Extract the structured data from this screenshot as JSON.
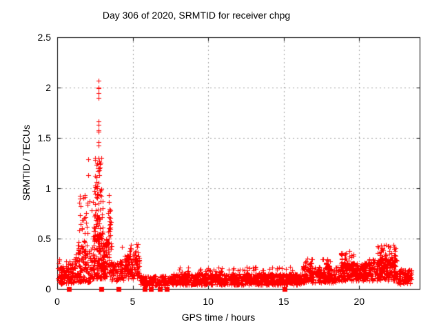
{
  "chart_data": {
    "type": "scatter",
    "title": "Day 306 of 2020, SRMTID for receiver chpg",
    "xlabel": "GPS time / hours",
    "ylabel": "SRMTID / TECUs",
    "xlim": [
      0,
      24
    ],
    "ylim": [
      0,
      2.5
    ],
    "xticks": [
      "0",
      "5",
      "10",
      "15",
      "20"
    ],
    "yticks": [
      "0",
      "0.5",
      "1",
      "1.5",
      "2",
      "2.5"
    ],
    "grid": {
      "shown": true,
      "style": "dotted",
      "color": "#9c9c9c"
    },
    "legend_position": "none",
    "frame_color": "#000000",
    "marker_color": "#ff0000",
    "peak": {
      "x": 2.73,
      "y": 2.07
    },
    "series": [
      {
        "name": "srmtid-plus-markers",
        "marker": "plus",
        "color": "#ff0000",
        "outlier_points": [
          [
            2.73,
            2.07
          ],
          [
            2.72,
            2.0
          ],
          [
            2.745,
            1.995
          ],
          [
            2.76,
            1.99
          ],
          [
            2.73,
            1.945
          ],
          [
            2.735,
            1.9
          ],
          [
            2.72,
            1.665
          ],
          [
            2.735,
            1.63
          ],
          [
            2.745,
            1.575
          ],
          [
            2.755,
            1.565
          ],
          [
            2.73,
            1.46
          ],
          [
            2.74,
            1.425
          ],
          [
            2.76,
            1.3
          ],
          [
            2.79,
            1.27
          ],
          [
            2.81,
            1.24
          ],
          [
            2.77,
            1.2
          ],
          [
            2.7,
            1.17
          ],
          [
            2.05,
            1.285
          ],
          [
            2.06,
            1.13
          ],
          [
            2.58,
            1.06
          ],
          [
            2.5,
            1.03
          ],
          [
            2.64,
            1.0
          ],
          [
            2.46,
            0.97
          ],
          [
            1.52,
            0.9
          ],
          [
            1.56,
            0.82
          ],
          [
            1.49,
            0.73
          ],
          [
            2.35,
            0.86
          ],
          [
            2.3,
            0.78
          ],
          [
            3.42,
            0.93
          ],
          [
            3.43,
            0.86
          ],
          [
            3.45,
            0.795
          ],
          [
            3.44,
            0.71
          ],
          [
            3.46,
            0.635
          ],
          [
            3.47,
            0.575
          ],
          [
            3.41,
            0.52
          ],
          [
            4.31,
            0.42
          ],
          [
            10.0,
            0.205
          ],
          [
            12.55,
            0.22
          ],
          [
            16.55,
            0.3
          ],
          [
            19.35,
            0.38
          ],
          [
            21.75,
            0.44
          ],
          [
            21.9,
            0.425
          ],
          [
            21.55,
            0.405
          ]
        ],
        "density_clusters": [
          {
            "x0": 0.02,
            "x1": 1.2,
            "n": 130,
            "y0": 0.05,
            "y1": 0.22
          },
          {
            "x0": 0.05,
            "x1": 1.2,
            "n": 20,
            "y0": 0.18,
            "y1": 0.3
          },
          {
            "x0": 1.2,
            "x1": 2.3,
            "n": 130,
            "y0": 0.07,
            "y1": 0.4
          },
          {
            "x0": 1.35,
            "x1": 2.25,
            "n": 30,
            "y0": 0.35,
            "y1": 0.75
          },
          {
            "x0": 1.45,
            "x1": 2.2,
            "n": 10,
            "y0": 0.7,
            "y1": 0.95
          },
          {
            "x0": 2.3,
            "x1": 3.15,
            "n": 150,
            "y0": 0.1,
            "y1": 0.55
          },
          {
            "x0": 2.4,
            "x1": 3.05,
            "n": 60,
            "y0": 0.5,
            "y1": 0.95
          },
          {
            "x0": 2.5,
            "x1": 2.95,
            "n": 24,
            "y0": 0.9,
            "y1": 1.32
          },
          {
            "x0": 3.05,
            "x1": 3.6,
            "n": 70,
            "y0": 0.12,
            "y1": 0.5
          },
          {
            "x0": 3.3,
            "x1": 3.55,
            "n": 14,
            "y0": 0.5,
            "y1": 0.95
          },
          {
            "x0": 3.6,
            "x1": 4.45,
            "n": 80,
            "y0": 0.07,
            "y1": 0.28
          },
          {
            "x0": 4.45,
            "x1": 5.45,
            "n": 120,
            "y0": 0.1,
            "y1": 0.33
          },
          {
            "x0": 4.6,
            "x1": 5.35,
            "n": 18,
            "y0": 0.3,
            "y1": 0.45
          },
          {
            "x0": 5.45,
            "x1": 7.6,
            "n": 200,
            "y0": 0.03,
            "y1": 0.13
          },
          {
            "x0": 7.6,
            "x1": 16.2,
            "n": 900,
            "y0": 0.04,
            "y1": 0.15
          },
          {
            "x0": 8.0,
            "x1": 16.0,
            "n": 70,
            "y0": 0.14,
            "y1": 0.22
          },
          {
            "x0": 16.2,
            "x1": 19.0,
            "n": 300,
            "y0": 0.06,
            "y1": 0.22
          },
          {
            "x0": 16.3,
            "x1": 16.9,
            "n": 14,
            "y0": 0.2,
            "y1": 0.3
          },
          {
            "x0": 17.4,
            "x1": 18.1,
            "n": 12,
            "y0": 0.2,
            "y1": 0.3
          },
          {
            "x0": 18.7,
            "x1": 19.7,
            "n": 30,
            "y0": 0.2,
            "y1": 0.36
          },
          {
            "x0": 19.0,
            "x1": 20.6,
            "n": 220,
            "y0": 0.08,
            "y1": 0.26
          },
          {
            "x0": 20.6,
            "x1": 22.5,
            "n": 230,
            "y0": 0.08,
            "y1": 0.3
          },
          {
            "x0": 21.2,
            "x1": 22.45,
            "n": 45,
            "y0": 0.26,
            "y1": 0.44
          },
          {
            "x0": 22.5,
            "x1": 23.45,
            "n": 100,
            "y0": 0.05,
            "y1": 0.2
          }
        ]
      },
      {
        "name": "flagged-zero-square-markers",
        "marker": "filled-square",
        "color": "#ff0000",
        "y": 0,
        "x": [
          0.78,
          2.92,
          4.05,
          5.8,
          6.2,
          6.8,
          7.25,
          15.05
        ]
      }
    ]
  }
}
